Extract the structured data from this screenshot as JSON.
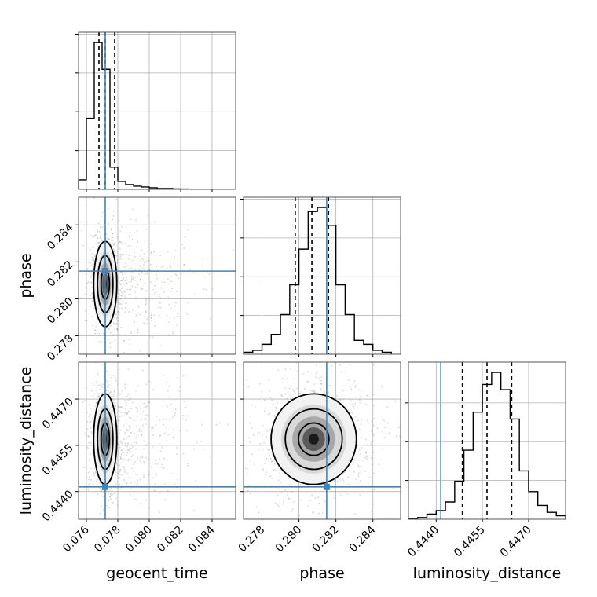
{
  "chart_data": {
    "type": "corner",
    "truth_color": "#4682b4",
    "params": [
      {
        "name": "geocent_time",
        "label": "geocent_time",
        "range": [
          0.0755,
          0.0855
        ],
        "ticks": [
          0.076,
          0.078,
          0.08,
          0.082,
          0.084
        ],
        "tick_labels": [
          "0.076",
          "0.078",
          "0.080",
          "0.082",
          "0.084"
        ],
        "truth": 0.0772,
        "quantiles": [
          0.0768,
          0.0772,
          0.0778
        ]
      },
      {
        "name": "phase",
        "label": "phase",
        "range": [
          0.277,
          0.2855
        ],
        "ticks": [
          0.278,
          0.28,
          0.282,
          0.284
        ],
        "tick_labels": [
          "0.278",
          "0.280",
          "0.282",
          "0.284"
        ],
        "truth": 0.2815,
        "quantiles": [
          0.2798,
          0.2807,
          0.2816
        ]
      },
      {
        "name": "luminosity_distance",
        "label": "luminosity_distance",
        "range": [
          0.4431,
          0.4482
        ],
        "ticks": [
          0.444,
          0.4455,
          0.447
        ],
        "tick_labels": [
          "0.4440",
          "0.4455",
          "0.4470"
        ],
        "truth": 0.44415,
        "quantiles": [
          0.44485,
          0.44565,
          0.44645
        ]
      }
    ],
    "hist": [
      {
        "param": "geocent_time",
        "bins": [
          0.0755,
          0.076,
          0.0765,
          0.077,
          0.0775,
          0.078,
          0.0785,
          0.079,
          0.0795,
          0.08,
          0.0805,
          0.081,
          0.0815,
          0.082,
          0.0825
        ],
        "counts": [
          0.06,
          0.45,
          0.93,
          0.76,
          0.14,
          0.05,
          0.03,
          0.02,
          0.015,
          0.01,
          0.005,
          0.005,
          0.003,
          0.002
        ]
      },
      {
        "param": "phase",
        "bins": [
          0.277,
          0.2775,
          0.278,
          0.2785,
          0.279,
          0.2795,
          0.28,
          0.2805,
          0.281,
          0.2815,
          0.282,
          0.2825,
          0.283,
          0.2835,
          0.284,
          0.2845,
          0.285
        ],
        "counts": [
          0.01,
          0.02,
          0.05,
          0.1,
          0.2,
          0.35,
          0.53,
          0.72,
          0.74,
          0.65,
          0.35,
          0.2,
          0.07,
          0.05,
          0.02,
          0.01
        ]
      },
      {
        "param": "luminosity_distance",
        "bins": [
          0.4431,
          0.4434,
          0.4437,
          0.444,
          0.4443,
          0.4446,
          0.4449,
          0.4452,
          0.4455,
          0.4458,
          0.4461,
          0.4464,
          0.4467,
          0.447,
          0.4473,
          0.4476,
          0.4479,
          0.4482
        ],
        "counts": [
          0.005,
          0.01,
          0.03,
          0.05,
          0.1,
          0.22,
          0.4,
          0.62,
          0.78,
          0.85,
          0.75,
          0.58,
          0.28,
          0.16,
          0.08,
          0.04,
          0.02
        ]
      }
    ],
    "pairs": [
      {
        "x": "geocent_time",
        "y": "phase",
        "center": [
          0.0772,
          0.2808
        ],
        "spread": [
          0.00035,
          0.0011
        ],
        "tail_x": 0.0035
      },
      {
        "x": "geocent_time",
        "y": "luminosity_distance",
        "center": [
          0.0772,
          0.4457
        ],
        "spread": [
          0.00035,
          0.0007
        ],
        "tail_x": 0.0035
      },
      {
        "x": "phase",
        "y": "luminosity_distance",
        "center": [
          0.2808,
          0.4457
        ],
        "spread": [
          0.0011,
          0.0007
        ],
        "tail_x": 0
      }
    ]
  }
}
